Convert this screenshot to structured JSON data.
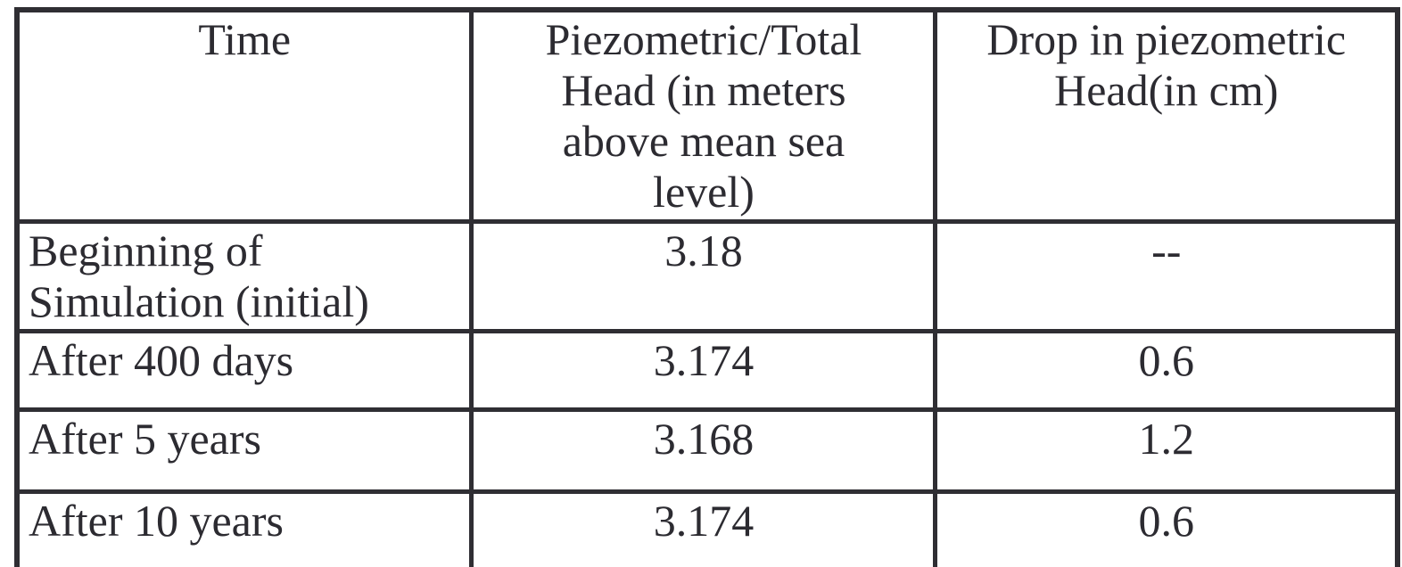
{
  "table": {
    "headers": {
      "time": "Time",
      "head": "Piezometric/Total Head (in meters above mean sea level)",
      "drop": "Drop in piezometric Head(in cm)"
    },
    "rows": [
      {
        "time": "Beginning of Simulation (initial)",
        "head": "3.18",
        "drop": "--"
      },
      {
        "time": "After 400 days",
        "head": "3.174",
        "drop": "0.6"
      },
      {
        "time": "After 5 years",
        "head": "3.168",
        "drop": "1.2"
      },
      {
        "time": "After 10 years",
        "head": "3.174",
        "drop": "0.6"
      }
    ],
    "colors": {
      "border": "#2f2e33",
      "text": "#2c2b31",
      "background": "#ffffff"
    }
  }
}
